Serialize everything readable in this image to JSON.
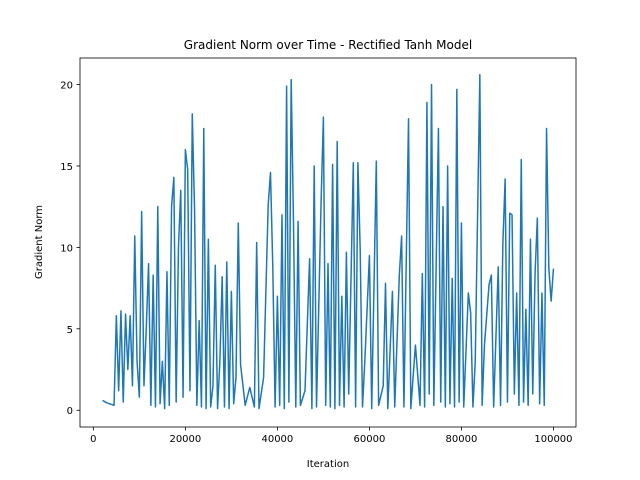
{
  "chart_data": {
    "type": "line",
    "title": "Gradient Norm over Time - Rectified Tanh Model",
    "x_label": "Iteration",
    "y_label": "Gradient Norm",
    "color": "#1f77b4",
    "x": [
      2000,
      3000,
      4500,
      5000,
      5500,
      6000,
      6500,
      7000,
      7500,
      8000,
      8500,
      9000,
      9500,
      10000,
      10500,
      11000,
      11500,
      12000,
      12500,
      13000,
      13500,
      14000,
      14500,
      15000,
      15500,
      16000,
      16500,
      17000,
      17500,
      18000,
      18500,
      19000,
      19500,
      20000,
      20500,
      21000,
      21500,
      22000,
      22500,
      23000,
      23500,
      24000,
      24500,
      25000,
      25500,
      26000,
      26500,
      27000,
      27500,
      28000,
      28500,
      29000,
      29500,
      30000,
      30500,
      31000,
      31500,
      32000,
      33000,
      34000,
      35000,
      35500,
      36000,
      37000,
      38000,
      38500,
      39000,
      39500,
      40000,
      40500,
      41000,
      41500,
      42000,
      42500,
      43000,
      43500,
      44000,
      44500,
      45000,
      46000,
      47000,
      47500,
      48000,
      48500,
      49500,
      50000,
      50500,
      51000,
      51500,
      52000,
      52500,
      53000,
      53500,
      54000,
      54500,
      55000,
      55500,
      56500,
      57000,
      57500,
      58000,
      58500,
      59000,
      60000,
      60500,
      61500,
      62000,
      63000,
      63500,
      64000,
      65000,
      65500,
      66500,
      67000,
      67500,
      68500,
      69000,
      70000,
      71000,
      71500,
      72000,
      72500,
      73000,
      73500,
      74000,
      75000,
      75500,
      76000,
      76500,
      77000,
      77500,
      78000,
      78500,
      79000,
      79500,
      80000,
      80500,
      81500,
      82000,
      82500,
      83000,
      84000,
      84500,
      85000,
      86000,
      86500,
      87000,
      88000,
      88500,
      89000,
      89500,
      90000,
      90500,
      91000,
      91500,
      92000,
      92500,
      93000,
      93500,
      94000,
      94500,
      95000,
      95500,
      96000,
      96500,
      97000,
      97500,
      98000,
      98500,
      99000,
      99500,
      100000
    ],
    "values": [
      0.6,
      0.45,
      0.3,
      5.8,
      1.2,
      6.1,
      0.5,
      5.9,
      2.5,
      5.8,
      1.5,
      10.7,
      3,
      0.8,
      12.2,
      1.5,
      5,
      9,
      0.3,
      8.3,
      0.2,
      12.5,
      0.4,
      3,
      0.1,
      8.5,
      0.3,
      12.5,
      14.3,
      0.5,
      10,
      13.5,
      0.8,
      16,
      14.8,
      1.2,
      18.2,
      12.3,
      0.3,
      5.5,
      0.2,
      17.3,
      0.1,
      10.5,
      0.2,
      1.5,
      8.9,
      0.1,
      3,
      8.2,
      0.2,
      9.1,
      0.1,
      7.3,
      0.4,
      2,
      11.5,
      2.8,
      0.3,
      1.4,
      0.2,
      10.3,
      0.1,
      2,
      12.6,
      14.6,
      8.8,
      0.2,
      7,
      0.3,
      12,
      0.1,
      19.9,
      0.5,
      20.3,
      11.5,
      0.2,
      11.6,
      0.3,
      1.2,
      9.3,
      0.1,
      15,
      0.2,
      12.8,
      18,
      0.3,
      9,
      0.2,
      15.1,
      0.1,
      16.5,
      0.3,
      7,
      0.2,
      9.7,
      1,
      15.2,
      0.2,
      15.2,
      9.8,
      0.2,
      3,
      9.5,
      0.1,
      15.3,
      0.3,
      1.5,
      7.8,
      0.1,
      7.3,
      0.2,
      8.3,
      10.7,
      0.2,
      17.9,
      0.1,
      4,
      0.3,
      8.4,
      0.2,
      18.9,
      1,
      20,
      0.3,
      17.3,
      0.5,
      12.5,
      0.2,
      15,
      0.4,
      8.1,
      0.2,
      19.7,
      0.5,
      11.5,
      0.2,
      7.2,
      6,
      0.2,
      3,
      20.6,
      0.3,
      4,
      7.7,
      8.3,
      0.2,
      8.8,
      0.3,
      10.2,
      14.2,
      0.5,
      12.1,
      12,
      1,
      7.2,
      0.3,
      15.4,
      0.5,
      6.2,
      0.3,
      10.5,
      1,
      8.4,
      11.8,
      0.4,
      7.2,
      0.3,
      17.3,
      8.7,
      6.7,
      8.7
    ],
    "xlim": [
      -2900,
      104900
    ],
    "xticks": [
      0,
      20000,
      40000,
      60000,
      80000,
      100000
    ],
    "ylim": [
      -1.03,
      21.63
    ],
    "yticks": [
      0,
      5,
      10,
      15,
      20
    ]
  }
}
